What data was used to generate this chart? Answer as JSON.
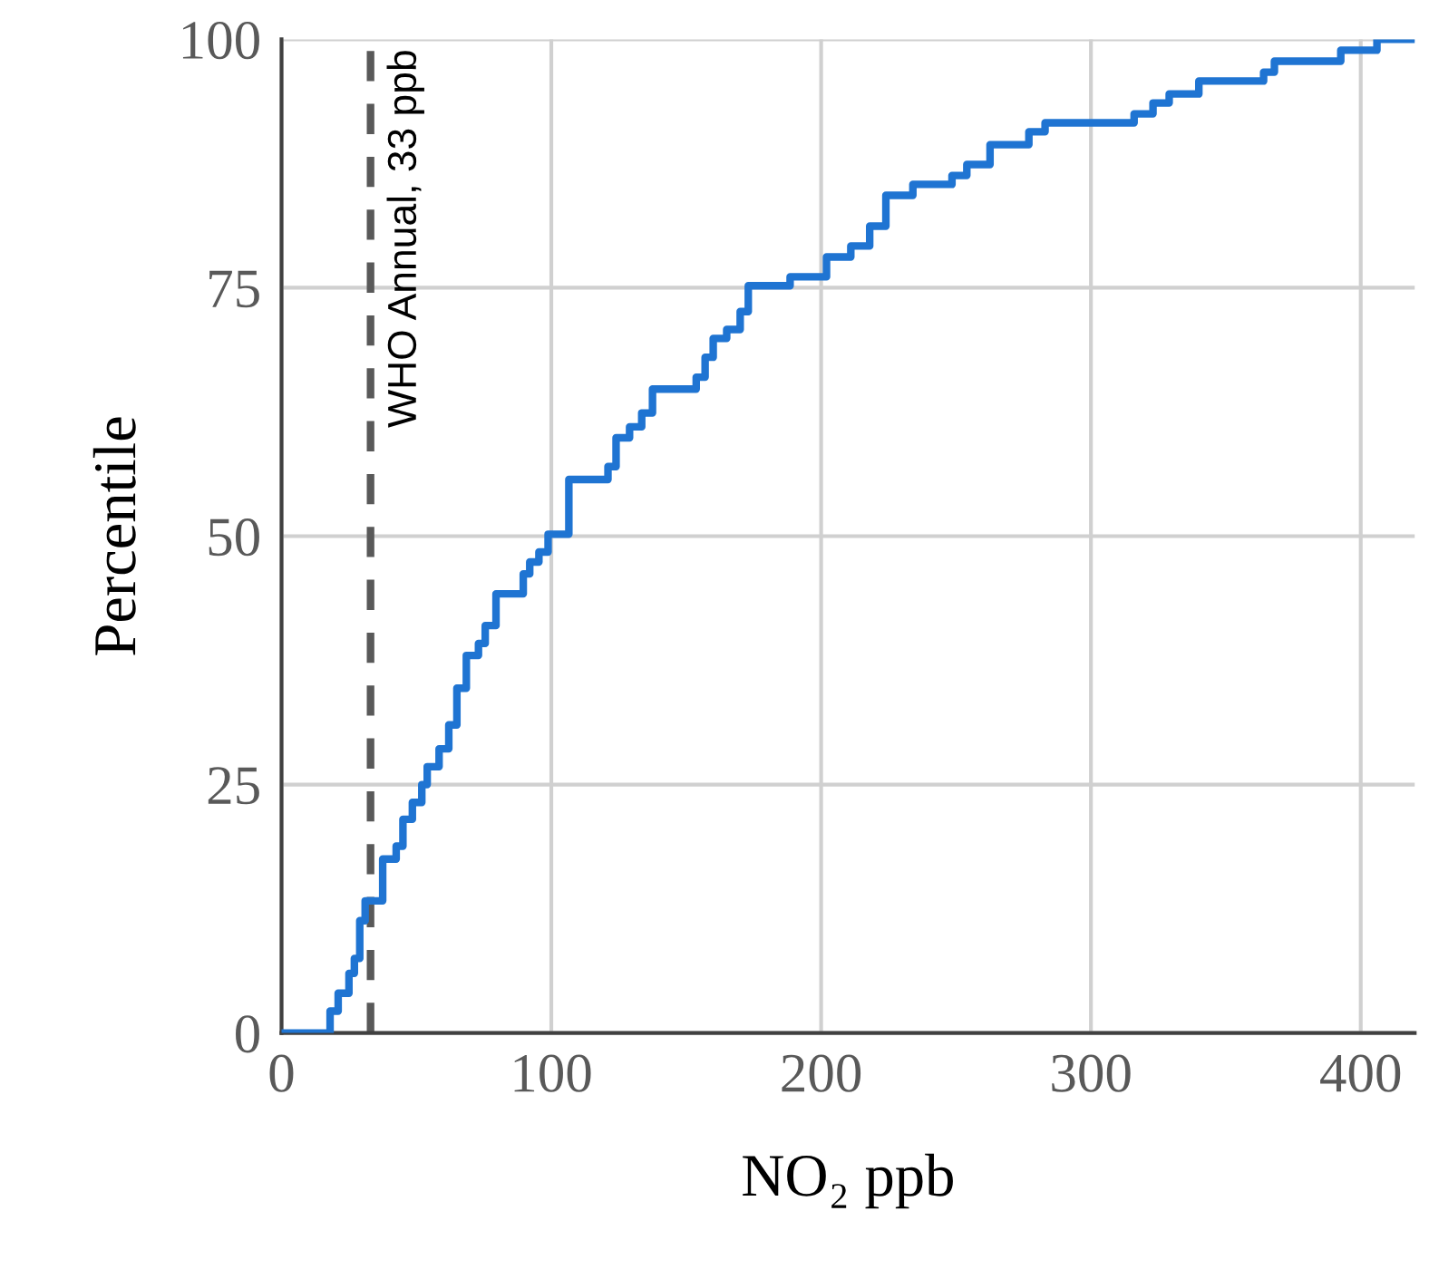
{
  "chart_data": {
    "type": "step",
    "xlabel": "NO₂ ppb",
    "ylabel": "Percentile",
    "x": [
      0,
      18,
      21,
      25,
      27,
      29,
      31,
      37.5,
      42.5,
      45,
      48.5,
      52,
      54,
      58.4,
      62,
      65,
      68.5,
      73,
      75.5,
      79.5,
      89.6,
      92,
      95.4,
      98.8,
      106.5,
      121,
      124,
      129,
      133.5,
      137.5,
      153.7,
      157,
      160,
      165,
      170,
      173,
      188.5,
      202,
      211,
      218,
      224,
      234,
      248.5,
      254,
      262.6,
      277,
      283,
      316,
      323,
      329,
      340,
      364,
      368,
      392.6,
      406,
      420
    ],
    "series": [
      {
        "color": "#1f74d2",
        "values": [
          0,
          2.2,
          4,
          6,
          7.5,
          11.3,
          13.3,
          17.5,
          18.8,
          21.5,
          23.2,
          25,
          26.8,
          28.6,
          31,
          34.7,
          38,
          39.2,
          41,
          44.2,
          46.2,
          47.4,
          48.4,
          50.2,
          55.7,
          57,
          59.9,
          61,
          62.4,
          64.8,
          66,
          68,
          69.9,
          70.8,
          72.6,
          75.2,
          76.1,
          78.1,
          79.2,
          81.2,
          84.3,
          85.4,
          86.3,
          87.4,
          89.4,
          90.7,
          91.6,
          92.5,
          93.6,
          94.5,
          95.8,
          96.7,
          97.8,
          98.9,
          100,
          100
        ]
      }
    ],
    "xlim": [
      0,
      420
    ],
    "ylim": [
      0,
      100
    ],
    "xticks": [
      0,
      100,
      200,
      300,
      400
    ],
    "yticks": [
      0,
      25,
      50,
      75,
      100
    ],
    "grid": true,
    "legend": false,
    "marker": "none",
    "line_style": "solid",
    "ref_lines": [
      {
        "axis": "x",
        "value": 33,
        "label": "WHO Annual, 33 ppb",
        "color": "#595959",
        "line_style": "dashed"
      }
    ]
  }
}
